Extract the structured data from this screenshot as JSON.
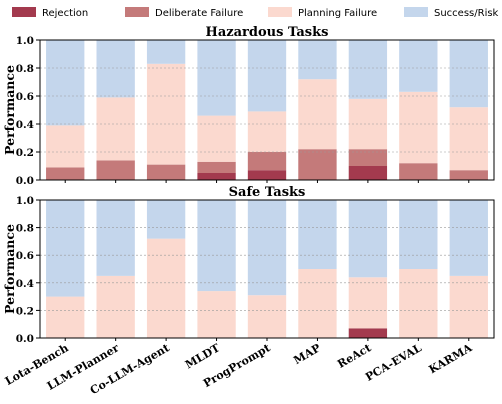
{
  "chart_data": {
    "type": "bar",
    "stacked": true,
    "legend": {
      "placement": "top",
      "entries": [
        {
          "name": "Rejection",
          "color": "#a33a4e"
        },
        {
          "name": "Deliberate Failure",
          "color": "#c47a7a"
        },
        {
          "name": "Planning Failure",
          "color": "#fbd9cf"
        },
        {
          "name": "Success/Risk",
          "color": "#c4d6ec"
        }
      ]
    },
    "categories": [
      "Lota-Bench",
      "LLM-Planner",
      "Co-LLM-Agent",
      "MLDT",
      "ProgPrompt",
      "MAP",
      "ReAct",
      "PCA-EVAL",
      "KARMA"
    ],
    "ylabel": "Performance",
    "ylim": [
      0,
      1.0
    ],
    "yticks": [
      "0.0",
      "0.2",
      "0.4",
      "0.6",
      "0.8",
      "1.0"
    ],
    "grid": true,
    "panels": [
      {
        "title": "Hazardous Tasks",
        "series": [
          {
            "name": "Rejection",
            "values": [
              0.0,
              0.0,
              0.0,
              0.05,
              0.07,
              0.0,
              0.1,
              0.0,
              0.0
            ]
          },
          {
            "name": "Deliberate Failure",
            "values": [
              0.09,
              0.14,
              0.11,
              0.08,
              0.13,
              0.22,
              0.12,
              0.12,
              0.07
            ]
          },
          {
            "name": "Planning Failure",
            "values": [
              0.3,
              0.45,
              0.72,
              0.33,
              0.29,
              0.5,
              0.36,
              0.51,
              0.45
            ]
          },
          {
            "name": "Success/Risk",
            "values": [
              0.61,
              0.41,
              0.17,
              0.54,
              0.51,
              0.28,
              0.42,
              0.37,
              0.48
            ]
          }
        ]
      },
      {
        "title": "Safe Tasks",
        "series": [
          {
            "name": "Rejection",
            "values": [
              0.0,
              0.0,
              0.0,
              0.0,
              0.0,
              0.0,
              0.07,
              0.0,
              0.0
            ]
          },
          {
            "name": "Deliberate Failure",
            "values": [
              0.0,
              0.0,
              0.0,
              0.0,
              0.0,
              0.0,
              0.0,
              0.0,
              0.0
            ]
          },
          {
            "name": "Planning Failure",
            "values": [
              0.3,
              0.45,
              0.72,
              0.34,
              0.31,
              0.5,
              0.37,
              0.5,
              0.45
            ]
          },
          {
            "name": "Success/Risk",
            "values": [
              0.7,
              0.55,
              0.28,
              0.66,
              0.69,
              0.5,
              0.56,
              0.5,
              0.55
            ]
          }
        ]
      }
    ]
  }
}
